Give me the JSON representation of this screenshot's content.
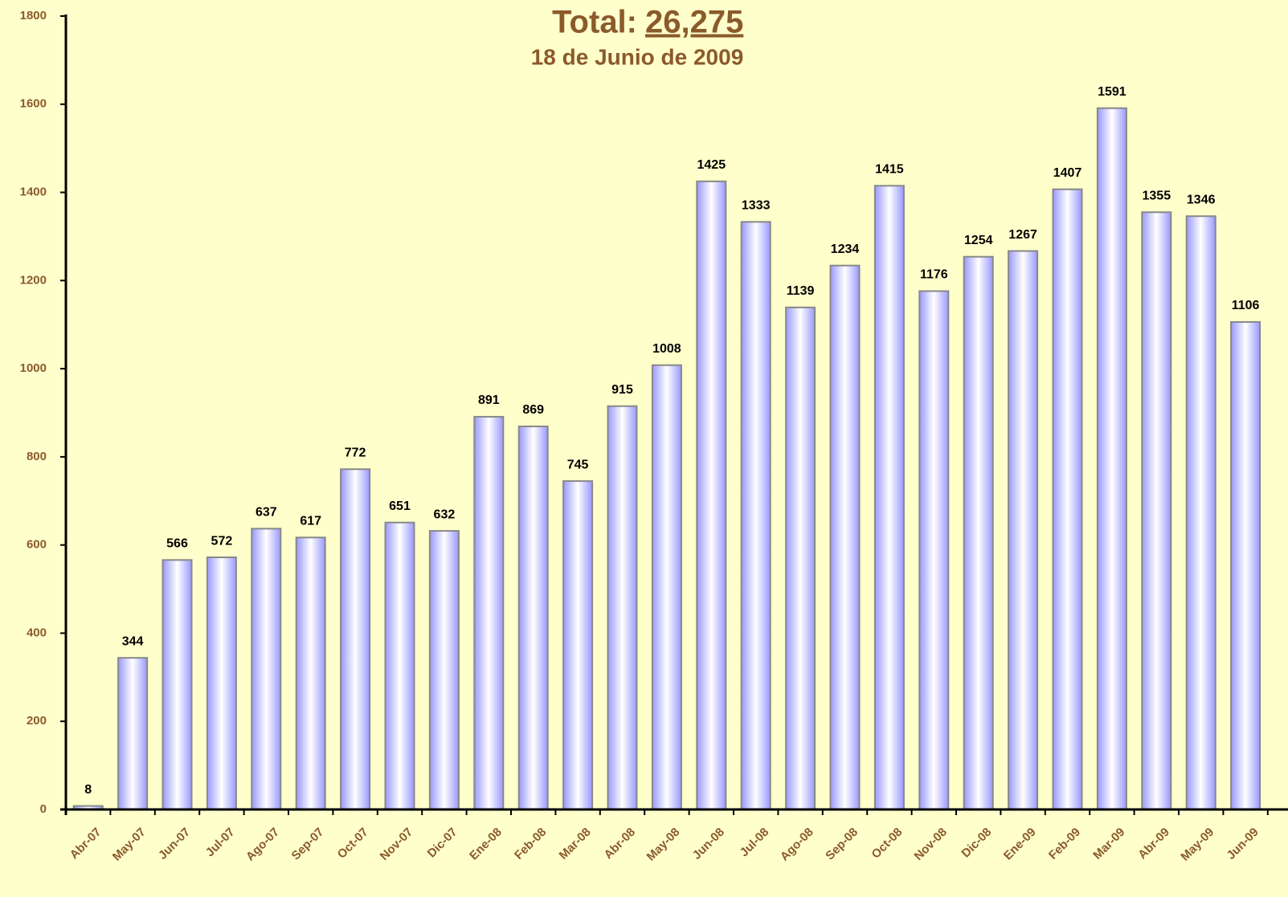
{
  "chart_data": {
    "type": "bar",
    "title": "Total:",
    "total": "26,275",
    "subtitle": "18 de Junio de 2009",
    "categories": [
      "Abr-07",
      "May-07",
      "Jun-07",
      "Jul-07",
      "Ago-07",
      "Sep-07",
      "Oct-07",
      "Nov-07",
      "Dic-07",
      "Ene-08",
      "Feb-08",
      "Mar-08",
      "Abr-08",
      "May-08",
      "Jun-08",
      "Jul-08",
      "Ago-08",
      "Sep-08",
      "Oct-08",
      "Nov-08",
      "Dic-08",
      "Ene-09",
      "Feb-09",
      "Mar-09",
      "Abr-09",
      "May-09",
      "Jun-09"
    ],
    "values": [
      8,
      344,
      566,
      572,
      637,
      617,
      772,
      651,
      632,
      891,
      869,
      745,
      915,
      1008,
      1425,
      1333,
      1139,
      1234,
      1415,
      1176,
      1254,
      1267,
      1407,
      1591,
      1355,
      1346,
      1106
    ],
    "color": "#9999ff",
    "ylim": [
      0,
      1800
    ],
    "yticks": [
      0,
      200,
      400,
      600,
      800,
      1000,
      1200,
      1400,
      1600,
      1800
    ]
  }
}
